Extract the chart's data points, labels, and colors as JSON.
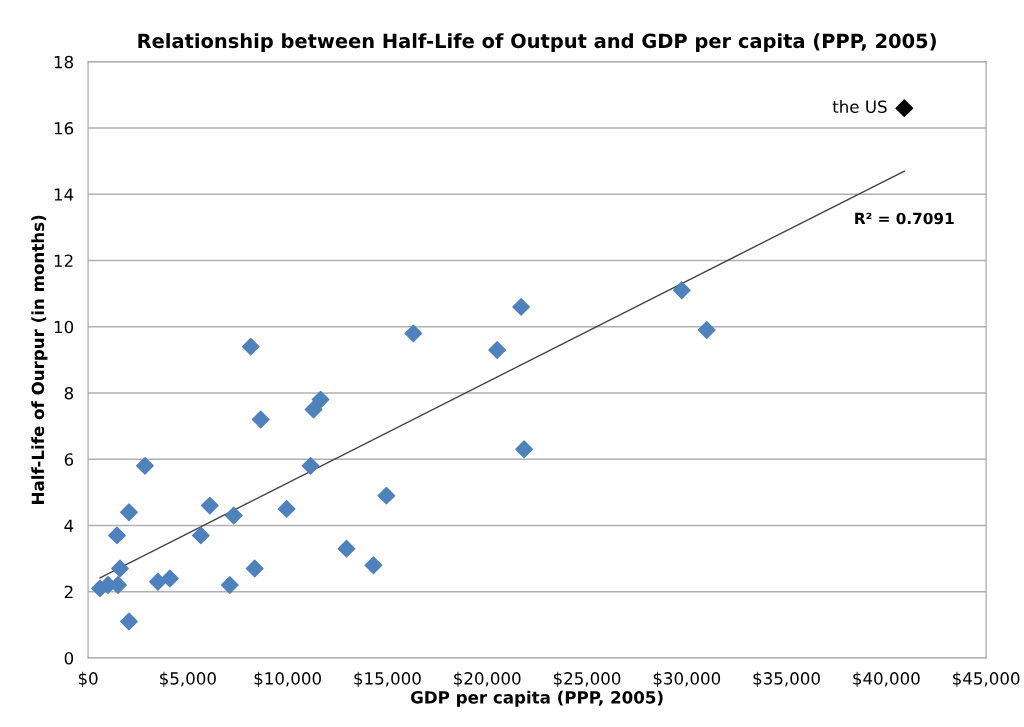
{
  "chart_data": {
    "type": "scatter",
    "title": "Relationship between Half-Life of Output and GDP per capita (PPP, 2005)",
    "xlabel": "GDP per capita (PPP, 2005)",
    "ylabel": "Half-Life of Ourpur (in months)",
    "series": [
      {
        "color": "#4f81bd",
        "marker": "diamond",
        "x": [
          600,
          1000,
          1450,
          1500,
          1600,
          2050,
          2050,
          2850,
          3500,
          4100,
          5650,
          6100,
          7100,
          7300,
          8150,
          8350,
          8650,
          9950,
          11150,
          11300,
          11650,
          12950,
          14300,
          14950,
          16300,
          20500,
          21700,
          21850,
          29750,
          31000
        ],
        "values": [
          2.1,
          2.2,
          3.7,
          2.2,
          2.7,
          4.4,
          1.1,
          5.8,
          2.3,
          2.4,
          3.7,
          4.6,
          2.2,
          4.3,
          9.4,
          2.7,
          7.2,
          4.5,
          5.8,
          7.5,
          7.8,
          3.3,
          2.8,
          4.9,
          9.8,
          9.3,
          10.6,
          6.3,
          11.1,
          9.9
        ]
      },
      {
        "color": "#000000",
        "marker": "diamond",
        "x": [
          40900
        ],
        "values": [
          16.6
        ]
      },
      {
        "type": "line",
        "color": "#404040",
        "marker": "none",
        "line_style": "solid",
        "x": [
          600,
          40900
        ],
        "values": [
          2.42,
          14.7
        ]
      }
    ],
    "annotations": [
      {
        "text": "the US",
        "x": 40900,
        "y": 16.6
      },
      "R² = 0.7091"
    ],
    "xlim": [
      0,
      45000
    ],
    "xticks": [
      {
        "value": 0,
        "label": "$0"
      },
      {
        "value": 5000,
        "label": "$5,000"
      },
      {
        "value": 10000,
        "label": "$10,000"
      },
      {
        "value": 15000,
        "label": "$15,000"
      },
      {
        "value": 20000,
        "label": "$20,000"
      },
      {
        "value": 25000,
        "label": "$25,000"
      },
      {
        "value": 30000,
        "label": "$30,000"
      },
      {
        "value": 35000,
        "label": "$35,000"
      },
      {
        "value": 40000,
        "label": "$40,000"
      },
      {
        "value": 45000,
        "label": "$45,000"
      }
    ],
    "ylim": [
      0,
      18
    ],
    "yticks": [
      0,
      2,
      4,
      6,
      8,
      10,
      12,
      14,
      16,
      18
    ],
    "grid": "y",
    "legend": false
  }
}
